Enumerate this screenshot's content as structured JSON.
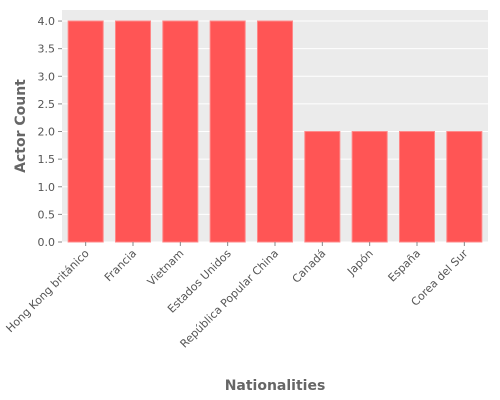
{
  "chart_data": {
    "type": "bar",
    "title": "",
    "xlabel": "Nationalities",
    "ylabel": "Actor Count",
    "categories": [
      "Hong Kong británico",
      "Francia",
      "Vietnam",
      "Estados Unidos",
      "República Popular China",
      "Canadá",
      "Japón",
      "España",
      "Corea del Sur"
    ],
    "values": [
      4,
      4,
      4,
      4,
      4,
      2,
      2,
      2,
      2
    ],
    "ylim": [
      0,
      4.2
    ],
    "yticks": [
      "0.0",
      "0.5",
      "1.0",
      "1.5",
      "2.0",
      "2.5",
      "3.0",
      "3.5",
      "4.0"
    ],
    "grid": true,
    "legend": "none",
    "colors": {
      "bar": "#ff5555",
      "bar_edge": "#ff8888",
      "plot_background": "#ebebeb",
      "grid": "#ffffff"
    }
  }
}
